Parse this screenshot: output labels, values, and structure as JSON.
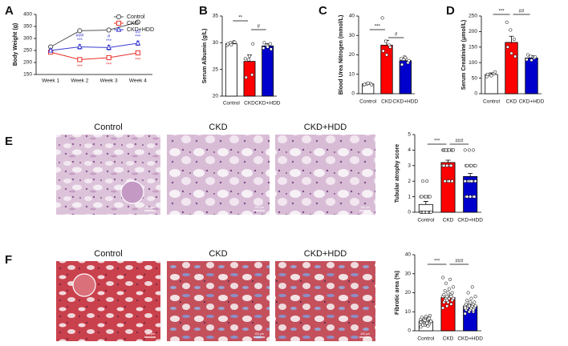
{
  "panel_labels": [
    "A",
    "B",
    "C",
    "D",
    "E",
    "F"
  ],
  "image_rows": [
    {
      "titles": [
        "Control",
        "CKD",
        "CKD+HDD"
      ],
      "scale_bar_label": "100 μm"
    },
    {
      "titles": [
        "Control",
        "CKD",
        "CKD+HDD"
      ],
      "scale_bar_label": "100 μm"
    }
  ],
  "chart_data": [
    {
      "type": "line",
      "y_label": "Body Weight (g)",
      "categories": [
        "Week 1",
        "Week 2",
        "Week 3",
        "Week 4"
      ],
      "ylim": [
        150,
        400
      ],
      "yticks": [
        150,
        200,
        250,
        300,
        350,
        400
      ],
      "series": [
        {
          "name": "Control",
          "color": "#555555",
          "marker": "circle",
          "values": [
            265,
            332,
            335,
            368
          ],
          "errors": [
            4,
            5,
            7,
            6
          ]
        },
        {
          "name": "CKD",
          "color": "#e8302a",
          "marker": "square",
          "values": [
            243,
            212,
            220,
            240
          ],
          "errors": [
            4,
            4,
            5,
            6
          ]
        },
        {
          "name": "CKD+HDD",
          "color": "#3b3bcf",
          "marker": "triangle",
          "values": [
            250,
            265,
            262,
            280
          ],
          "errors": [
            5,
            9,
            10,
            9
          ]
        }
      ],
      "annotations": [
        [
          "###",
          "***",
          "***"
        ],
        [
          "#",
          "***",
          "***"
        ],
        [
          "##",
          "***",
          "***"
        ]
      ]
    },
    {
      "type": "bar",
      "y_label": "Serum Albumin (g/L)",
      "categories": [
        "Control",
        "CKD",
        "CKD+HDD"
      ],
      "colors": [
        "#ffffff",
        "#ff0000",
        "#0000cc"
      ],
      "values": [
        29.8,
        26.5,
        29.4
      ],
      "errors": [
        0.3,
        1.2,
        0.4
      ],
      "points": [
        [
          29.5,
          30,
          30.2,
          29.8,
          29.6,
          30.1
        ],
        [
          27,
          26.8,
          24,
          23.5,
          27.5,
          29.8
        ],
        [
          29,
          29.5,
          29.8,
          30,
          29.2,
          28.8
        ]
      ],
      "significance": [
        "**",
        "#"
      ],
      "ylim": [
        20,
        35
      ],
      "yticks": [
        20,
        25,
        30,
        35
      ]
    },
    {
      "type": "bar",
      "y_label": "Blood Urea Nitrogen (mmol/L)",
      "categories": [
        "Control",
        "CKD",
        "CKD+HDD"
      ],
      "colors": [
        "#ffffff",
        "#ff0000",
        "#0000cc"
      ],
      "values": [
        5,
        25,
        17
      ],
      "errors": [
        0.5,
        2.5,
        1.2
      ],
      "points": [
        [
          4.5,
          5,
          5.2,
          4.8,
          5.5,
          4.6
        ],
        [
          39,
          27,
          25,
          22,
          20,
          24
        ],
        [
          18,
          19,
          16,
          15,
          18.5,
          17
        ]
      ],
      "significance": [
        "***",
        "#"
      ],
      "ylim": [
        0,
        40
      ],
      "yticks": [
        0,
        10,
        20,
        30,
        40
      ]
    },
    {
      "type": "bar",
      "y_label": "Serum Creatinine (μmol/L)",
      "categories": [
        "Control",
        "CKD",
        "CKD+HDD"
      ],
      "colors": [
        "#ffffff",
        "#ff0000",
        "#0000cc"
      ],
      "values": [
        62,
        165,
        115
      ],
      "errors": [
        5,
        20,
        7
      ],
      "points": [
        [
          55,
          60,
          65,
          62,
          58,
          70
        ],
        [
          230,
          205,
          175,
          150,
          130,
          120
        ],
        [
          110,
          120,
          115,
          125,
          108,
          118
        ]
      ],
      "significance": [
        "***",
        "##"
      ],
      "ylim": [
        0,
        250
      ],
      "yticks": [
        0,
        50,
        100,
        150,
        200,
        250
      ]
    },
    {
      "type": "bar",
      "y_label": "Tubular atrophy score",
      "categories": [
        "Control",
        "CKD",
        "CKD+HDD"
      ],
      "colors": [
        "#ffffff",
        "#ff0000",
        "#0000cc"
      ],
      "values": [
        0.5,
        3.2,
        2.3
      ],
      "errors": [
        0.2,
        0.15,
        0.2
      ],
      "points": [
        [
          0,
          0,
          0,
          0,
          0,
          0,
          0,
          0,
          0,
          0,
          1,
          1,
          1,
          1,
          1,
          1,
          1,
          2,
          2,
          0
        ],
        [
          4,
          4,
          4,
          4,
          4,
          4,
          4,
          4,
          4,
          4,
          3,
          3,
          3,
          3,
          3,
          2,
          2,
          2,
          2,
          4
        ],
        [
          4,
          4,
          4,
          3,
          3,
          3,
          3,
          3,
          2,
          2,
          2,
          2,
          2,
          1,
          1,
          1,
          1,
          1,
          2,
          3
        ]
      ],
      "significance": [
        "***",
        "###"
      ],
      "ylim": [
        0,
        5
      ],
      "yticks": [
        0,
        1,
        2,
        3,
        4,
        5
      ]
    },
    {
      "type": "bar",
      "y_label": "Fibrotic area (%)",
      "categories": [
        "Control",
        "CKD",
        "CKD+HDD"
      ],
      "colors": [
        "#ffffff",
        "#ff0000",
        "#0000cc"
      ],
      "values": [
        5,
        17.5,
        13
      ],
      "errors": [
        0.5,
        0.8,
        0.6
      ],
      "points": [
        [
          2,
          3,
          3.5,
          4,
          4,
          4.5,
          5,
          5,
          5,
          5.5,
          6,
          6,
          6.5,
          7,
          7,
          7.5,
          8,
          3,
          4,
          5,
          6,
          2.5,
          4.5,
          5.5,
          6.5
        ],
        [
          12,
          13,
          14,
          15,
          15,
          16,
          16,
          17,
          17,
          17,
          18,
          18,
          18,
          19,
          19,
          20,
          20,
          21,
          22,
          23,
          25,
          27,
          28,
          16,
          18
        ],
        [
          9,
          10,
          10,
          11,
          11,
          12,
          12,
          12,
          13,
          13,
          13,
          13,
          14,
          14,
          14,
          15,
          15,
          16,
          17,
          18,
          20,
          23,
          12,
          13,
          11
        ]
      ],
      "significance": [
        "***",
        "###"
      ],
      "ylim": [
        0,
        40
      ],
      "yticks": [
        0,
        10,
        20,
        30,
        40
      ]
    }
  ]
}
